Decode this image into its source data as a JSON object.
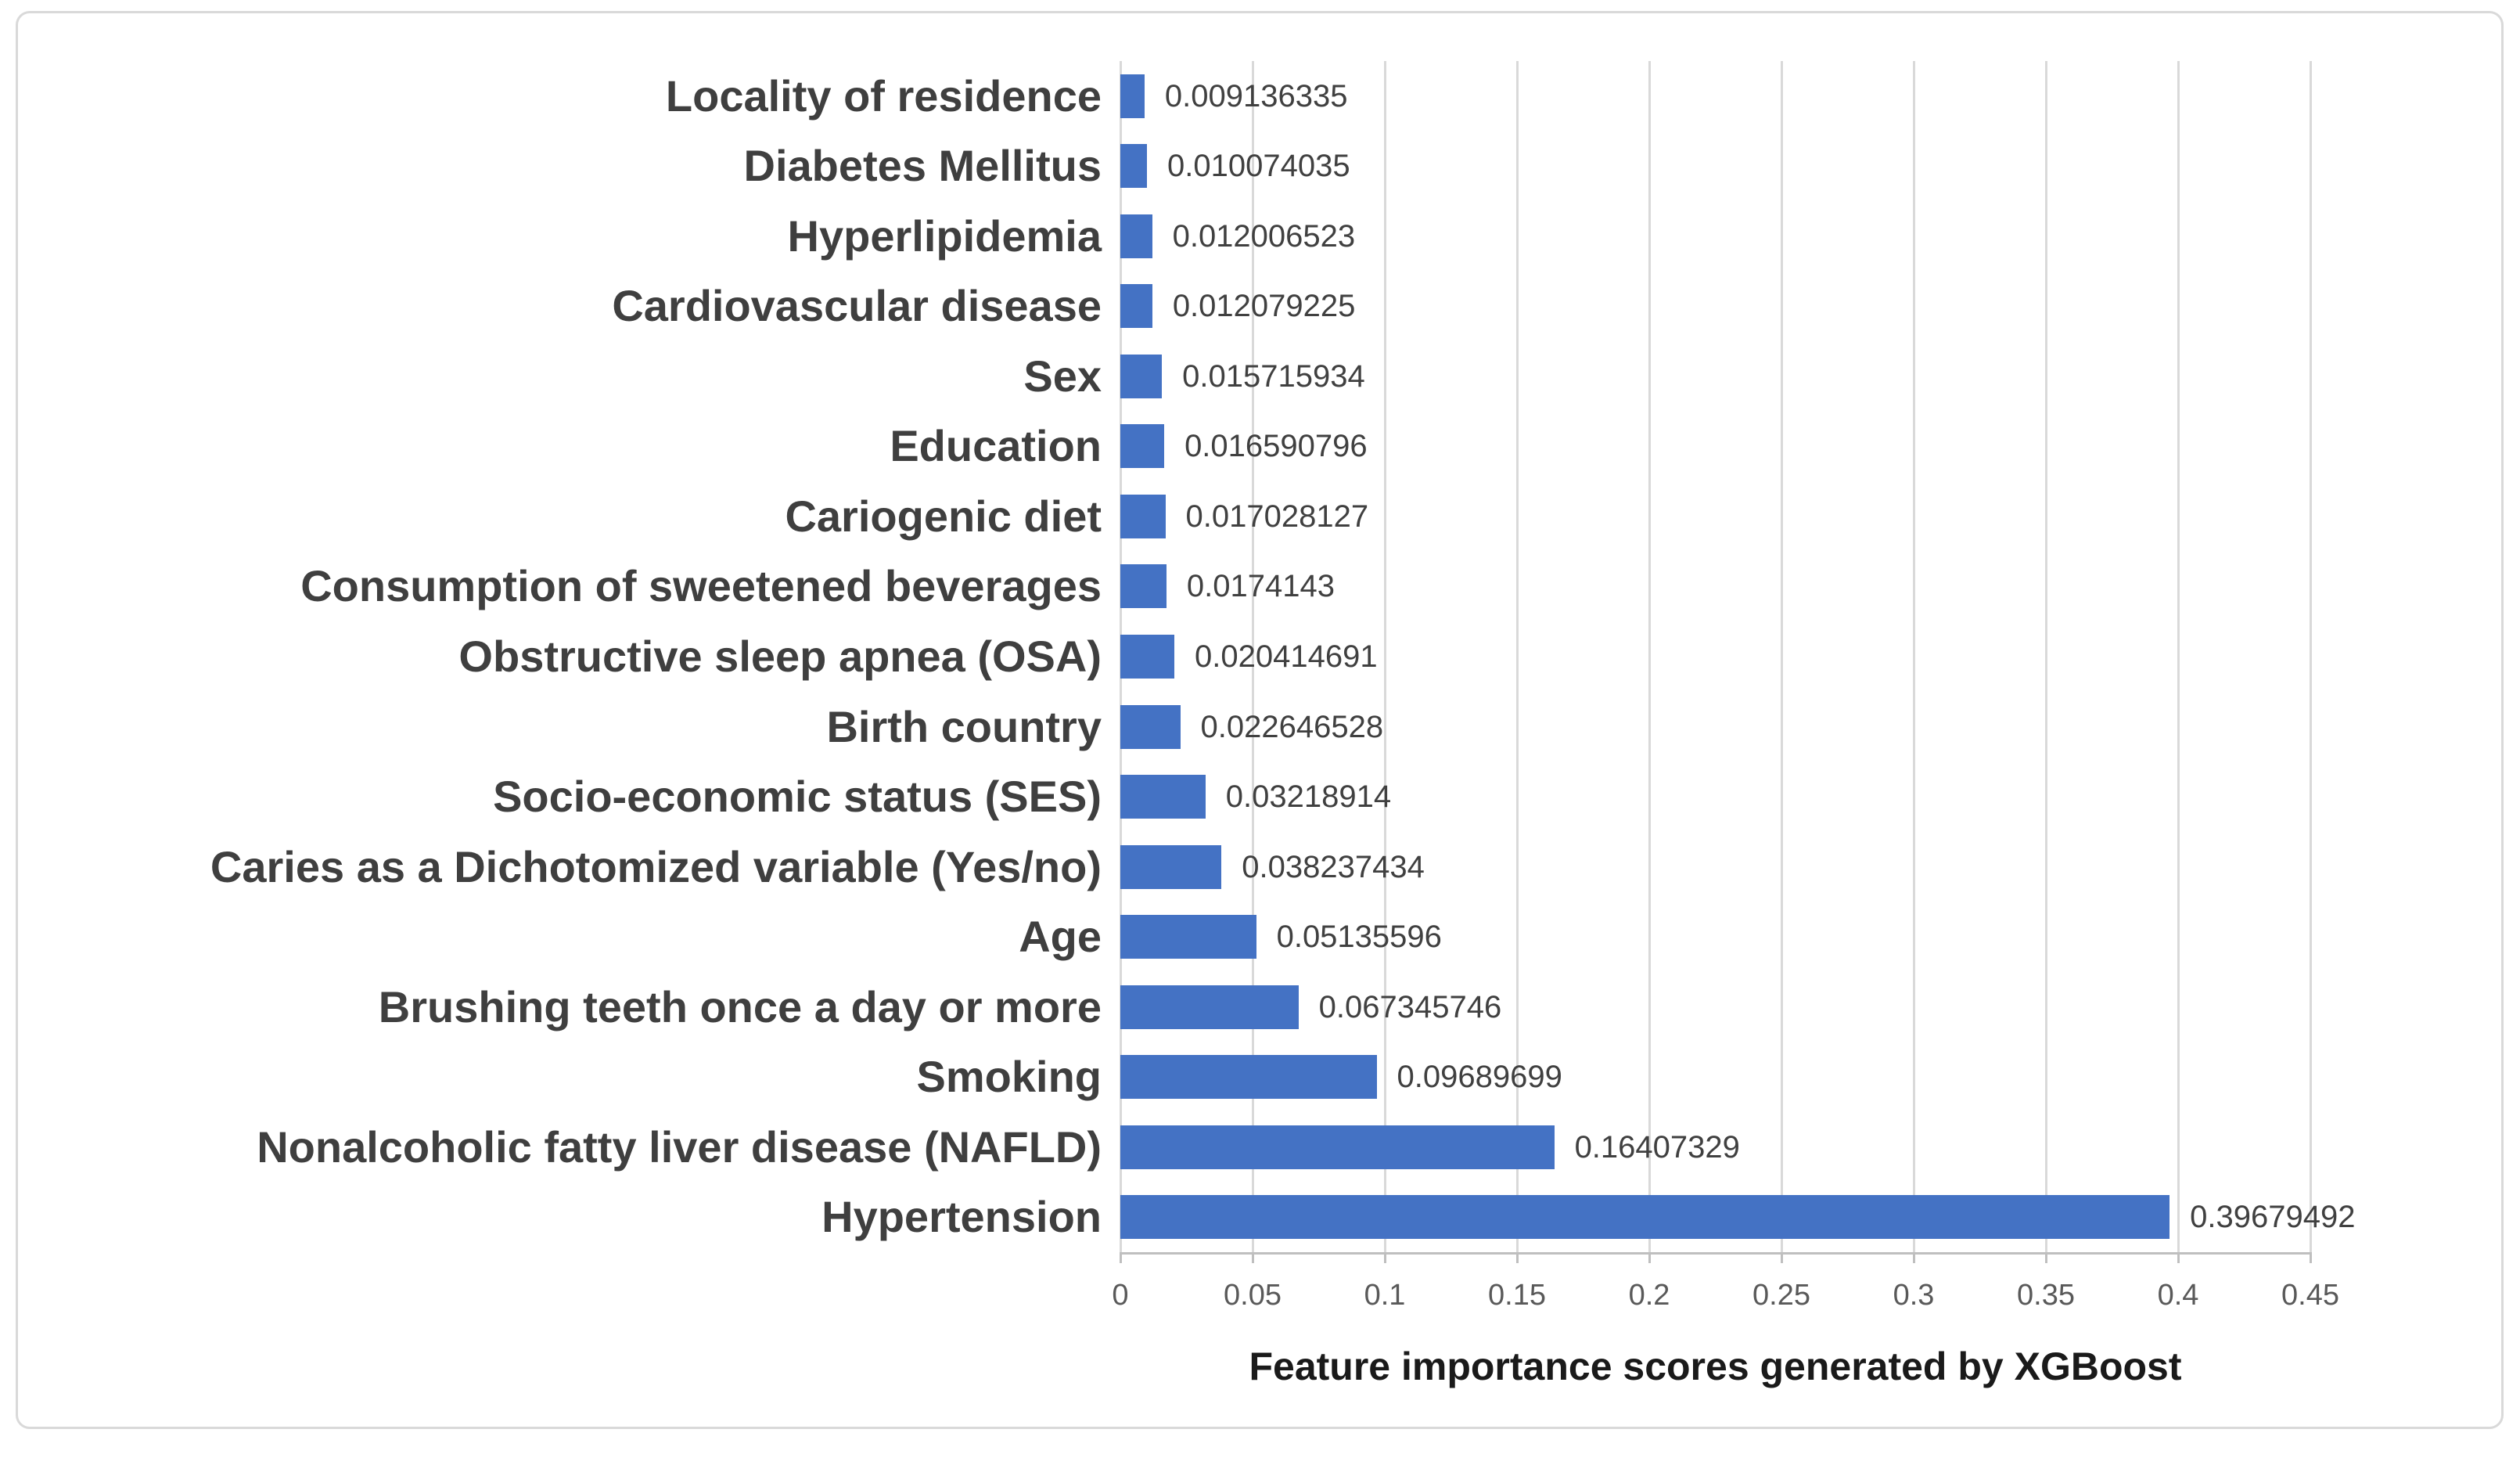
{
  "chart_data": {
    "type": "bar",
    "orientation": "horizontal",
    "xlabel": "Feature importance scores generated by XGBoost",
    "ylabel": "",
    "xlim": [
      0,
      0.45
    ],
    "grid": true,
    "legend": "none",
    "x_tick_labels": [
      "0",
      "0.05",
      "0.1",
      "0.15",
      "0.2",
      "0.25",
      "0.3",
      "0.35",
      "0.4",
      "0.45"
    ],
    "rows": [
      {
        "label": "Locality of residence",
        "value": 0.009136335,
        "value_label": "0.009136335"
      },
      {
        "label": "Diabetes Mellitus",
        "value": 0.010074035,
        "value_label": "0.010074035"
      },
      {
        "label": "Hyperlipidemia",
        "value": 0.012006523,
        "value_label": "0.012006523"
      },
      {
        "label": "Cardiovascular disease",
        "value": 0.012079225,
        "value_label": "0.012079225"
      },
      {
        "label": "Sex",
        "value": 0.015715934,
        "value_label": "0.015715934"
      },
      {
        "label": "Education",
        "value": 0.016590796,
        "value_label": "0.016590796"
      },
      {
        "label": "Cariogenic diet",
        "value": 0.017028127,
        "value_label": "0.017028127"
      },
      {
        "label": "Consumption of sweetened beverages",
        "value": 0.0174143,
        "value_label": "0.0174143"
      },
      {
        "label": "Obstructive sleep apnea (OSA)",
        "value": 0.020414691,
        "value_label": "0.020414691"
      },
      {
        "label": "Birth country",
        "value": 0.022646528,
        "value_label": "0.022646528"
      },
      {
        "label": "Socio-economic status (SES)",
        "value": 0.03218914,
        "value_label": "0.03218914"
      },
      {
        "label": "Caries as a Dichotomized variable (Yes/no)",
        "value": 0.038237434,
        "value_label": "0.038237434"
      },
      {
        "label": "Age",
        "value": 0.05135596,
        "value_label": "0.05135596"
      },
      {
        "label": "Brushing teeth once a day or more",
        "value": 0.067345746,
        "value_label": "0.067345746"
      },
      {
        "label": "Smoking",
        "value": 0.09689699,
        "value_label": "0.09689699"
      },
      {
        "label": "Nonalcoholic fatty liver disease (NAFLD)",
        "value": 0.16407329,
        "value_label": "0.16407329"
      },
      {
        "label": "Hypertension",
        "value": 0.39679492,
        "value_label": "0.39679492"
      }
    ],
    "colors": {
      "bar": "#4472C4",
      "gridline": "#D9D9D9",
      "axis_line": "#BFBFBF",
      "category_label": "#3F3F3F",
      "value_label": "#404040",
      "tick_label": "#595959",
      "axis_title": "#1A1A1A",
      "chart_border": "#D9D9D9",
      "background": "#FFFFFF"
    }
  }
}
